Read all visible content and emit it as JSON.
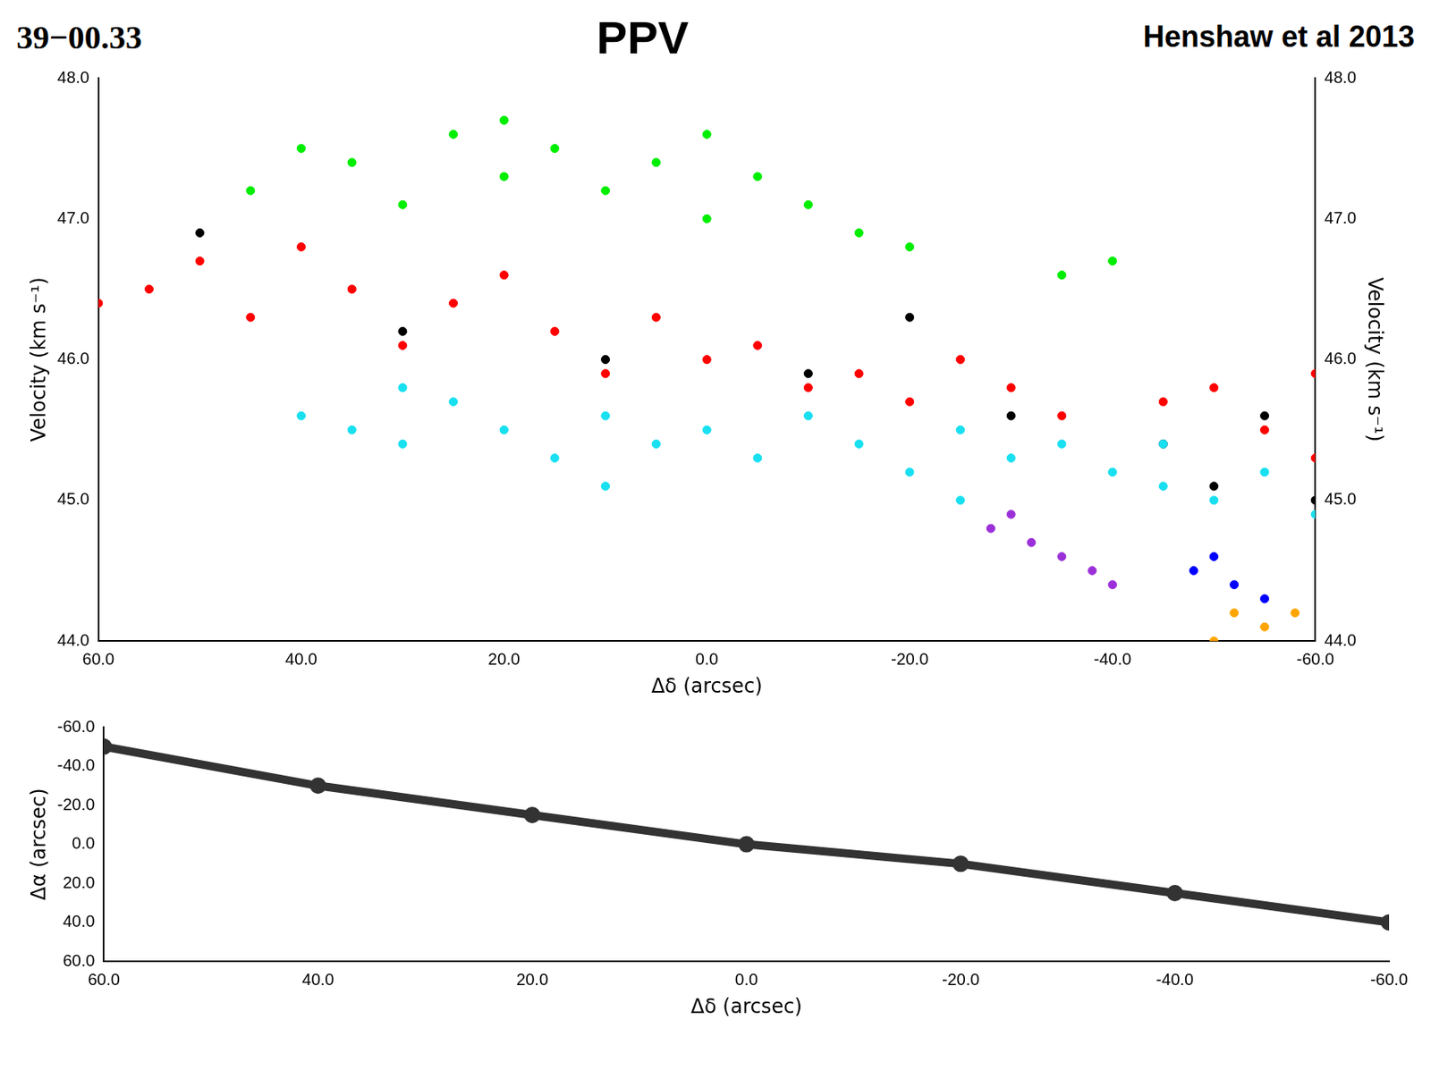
{
  "chart_data": [
    {
      "type": "scatter",
      "title": "39−00.33",
      "annotations": [
        "PPV",
        "Henshaw et al 2013"
      ],
      "x_label": "Δδ (arcsec)",
      "y_label": "Velocity (km s⁻¹)",
      "y2_label": "Velocity (km s⁻¹)",
      "xlim": [
        60,
        -60
      ],
      "xticks": [
        {
          "value": 60,
          "label": "60.0"
        },
        {
          "value": 40,
          "label": "40.0"
        },
        {
          "value": 20,
          "label": "20.0"
        },
        {
          "value": 0,
          "label": "0.0"
        },
        {
          "value": -20,
          "label": "-20.0"
        },
        {
          "value": -40,
          "label": "-40.0"
        },
        {
          "value": -60,
          "label": "-60.0"
        }
      ],
      "ylim": [
        44,
        48
      ],
      "yticks": [
        {
          "value": 44,
          "label": "44.0"
        },
        {
          "value": 45,
          "label": "45.0"
        },
        {
          "value": 46,
          "label": "46.0"
        },
        {
          "value": 47,
          "label": "47.0"
        },
        {
          "value": 48,
          "label": "48.0"
        }
      ],
      "y2lim": [
        44,
        48
      ],
      "y2ticks": [
        {
          "value": 44,
          "label": "44.0"
        },
        {
          "value": 45,
          "label": "45.0"
        },
        {
          "value": 46,
          "label": "46.0"
        },
        {
          "value": 47,
          "label": "47.0"
        },
        {
          "value": 48,
          "label": "48.0"
        }
      ],
      "grid": false,
      "series": [
        {
          "color": "#19e0f0",
          "x": [
            40,
            35,
            30,
            25,
            20,
            15,
            10,
            5,
            0,
            -5,
            -10,
            -15,
            -20,
            -25,
            -30,
            -35,
            -40,
            -45,
            -50,
            -55,
            -60,
            10,
            -25,
            30,
            -45
          ],
          "values": [
            45.6,
            45.5,
            45.4,
            45.7,
            45.5,
            45.3,
            45.6,
            45.4,
            45.5,
            45.3,
            45.6,
            45.4,
            45.2,
            45.5,
            45.3,
            45.4,
            45.2,
            45.1,
            45.0,
            45.2,
            44.9,
            45.1,
            45.0,
            45.8,
            45.4
          ]
        },
        {
          "color": "#ff0000",
          "x": [
            60,
            55,
            50,
            45,
            40,
            35,
            30,
            25,
            20,
            15,
            10,
            5,
            0,
            -5,
            -10,
            -15,
            -20,
            -25,
            -30,
            -35,
            -45,
            -50,
            -55,
            -60,
            -60
          ],
          "values": [
            46.4,
            46.5,
            46.7,
            46.3,
            46.8,
            46.5,
            46.1,
            46.4,
            46.6,
            46.2,
            45.9,
            46.3,
            46.0,
            46.1,
            45.8,
            45.9,
            45.7,
            46.0,
            45.8,
            45.6,
            45.7,
            45.8,
            45.5,
            45.9,
            45.3
          ]
        },
        {
          "color": "#00ee00",
          "x": [
            45,
            40,
            35,
            30,
            25,
            20,
            15,
            10,
            5,
            0,
            -5,
            -10,
            -15,
            -20,
            -35,
            -40,
            20,
            0
          ],
          "values": [
            47.2,
            47.5,
            47.4,
            47.1,
            47.6,
            47.3,
            47.5,
            47.2,
            47.4,
            47.0,
            47.3,
            47.1,
            46.9,
            46.8,
            46.6,
            46.7,
            47.7,
            47.6
          ]
        },
        {
          "color": "#000000",
          "x": [
            50,
            30,
            10,
            -10,
            -30,
            -45,
            -55,
            -60,
            -20,
            -50
          ],
          "values": [
            46.9,
            46.2,
            46.0,
            45.9,
            45.6,
            45.4,
            45.6,
            45.0,
            46.3,
            45.1
          ]
        },
        {
          "color": "#9b30d9",
          "x": [
            -30,
            -32,
            -35,
            -38,
            -28,
            -40
          ],
          "values": [
            44.9,
            44.7,
            44.6,
            44.5,
            44.8,
            44.4
          ]
        },
        {
          "color": "#0000ff",
          "x": [
            -50,
            -52,
            -55,
            -48
          ],
          "values": [
            44.6,
            44.4,
            44.3,
            44.5
          ]
        },
        {
          "color": "#ffa500",
          "x": [
            -52,
            -55,
            -58,
            -50
          ],
          "values": [
            44.2,
            44.1,
            44.2,
            44.0
          ]
        }
      ]
    },
    {
      "type": "line",
      "x_label": "Δδ (arcsec)",
      "y_label": "Δα (arcsec)",
      "xlim": [
        60,
        -60
      ],
      "xticks": [
        {
          "value": 60,
          "label": "60.0"
        },
        {
          "value": 40,
          "label": "40.0"
        },
        {
          "value": 20,
          "label": "20.0"
        },
        {
          "value": 0,
          "label": "0.0"
        },
        {
          "value": -20,
          "label": "-20.0"
        },
        {
          "value": -40,
          "label": "-40.0"
        },
        {
          "value": -60,
          "label": "-60.0"
        }
      ],
      "ylim": [
        60,
        -60
      ],
      "yticks": [
        {
          "value": 60,
          "label": "60.0"
        },
        {
          "value": 40,
          "label": "40.0"
        },
        {
          "value": 20,
          "label": "20.0"
        },
        {
          "value": 0,
          "label": "0.0"
        },
        {
          "value": -20,
          "label": "-20.0"
        },
        {
          "value": -40,
          "label": "-40.0"
        },
        {
          "value": -60,
          "label": "-60.0"
        }
      ],
      "grid": false,
      "series": [
        {
          "color": "#333333",
          "x": [
            60,
            40,
            20,
            0,
            -20,
            -40,
            -60
          ],
          "values": [
            -50,
            -30,
            -15,
            0,
            10,
            25,
            40
          ]
        }
      ]
    }
  ]
}
